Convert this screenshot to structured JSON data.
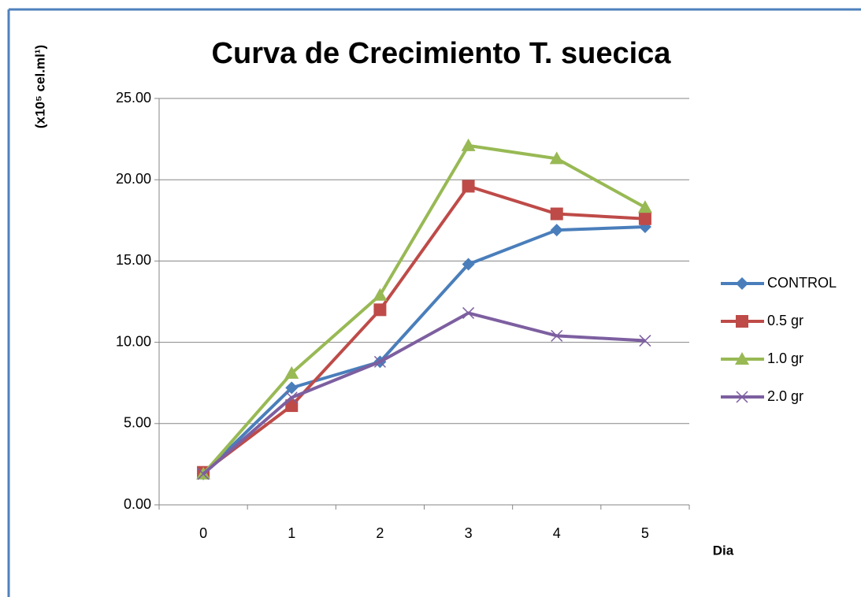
{
  "chart_data": {
    "type": "line",
    "title": "Curva de Crecimiento T. suecica",
    "y_label": "(x10⁵ cel.ml¹)",
    "x_label": "Dia",
    "categories": [
      "0",
      "1",
      "2",
      "3",
      "4",
      "5"
    ],
    "ylim": [
      0,
      25
    ],
    "yticks": [
      {
        "value": 0,
        "label": "0.00"
      },
      {
        "value": 5,
        "label": "5.00"
      },
      {
        "value": 10,
        "label": "10.00"
      },
      {
        "value": 15,
        "label": "15.00"
      },
      {
        "value": 20,
        "label": "20.00"
      },
      {
        "value": 25,
        "label": "25.00"
      }
    ],
    "grid": true,
    "legend": "right",
    "series": [
      {
        "name": "CONTROL",
        "color": "#4a7ebb",
        "marker": "diamond",
        "values": [
          1.9,
          7.2,
          8.8,
          14.8,
          16.9,
          17.1
        ]
      },
      {
        "name": "0.5 gr",
        "color": "#be4b48",
        "marker": "square",
        "values": [
          2.0,
          6.1,
          12.0,
          19.6,
          17.9,
          17.6
        ]
      },
      {
        "name": "1.0 gr",
        "color": "#98b954",
        "marker": "triangle",
        "values": [
          1.9,
          8.1,
          12.9,
          22.1,
          21.3,
          18.3
        ]
      },
      {
        "name": "2.0 gr",
        "color": "#7d5fa0",
        "marker": "x",
        "values": [
          1.9,
          6.6,
          8.8,
          11.8,
          10.4,
          10.1
        ]
      }
    ]
  }
}
